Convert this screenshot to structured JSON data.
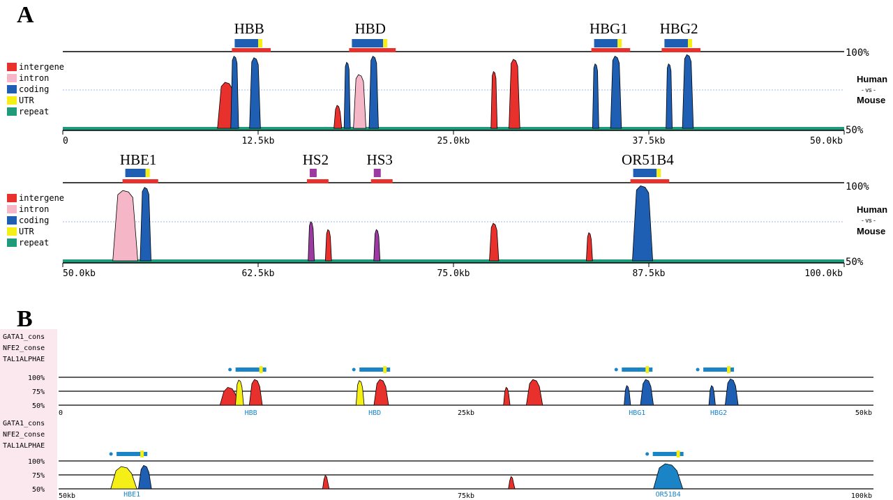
{
  "colors": {
    "intergene": "#e8302c",
    "intron": "#f5b6c8",
    "coding": "#1f5fb3",
    "utr": "#f5ef18",
    "repeat": "#1f9a7a",
    "hs": "#9b3aa0",
    "gene_blue": "#1a84c7",
    "b_pink": "#fbe8ee"
  },
  "panel_a": {
    "letter": "A",
    "legend": [
      "intergene",
      "intron",
      "coding",
      "UTR",
      "repeat"
    ],
    "human": "Human",
    "vs": "- vs -",
    "mouse": "Mouse",
    "pct_top": "100%",
    "pct_bottom": "50%"
  },
  "panel_b": {
    "letter": "B",
    "tracks": [
      "GATA1_cons",
      "NFE2_conse",
      "TAL1ALPHAE"
    ],
    "pct_labels": [
      "100%",
      "75%",
      "50%"
    ]
  },
  "chart_data": [
    {
      "type": "area",
      "panel": "A-top",
      "x_range_kb": [
        0,
        50
      ],
      "y_range_pct": [
        50,
        100
      ],
      "ticks": [
        "0",
        "12.5kb",
        "25.0kb",
        "37.5kb",
        "50.0kb"
      ],
      "genes": [
        {
          "name": "HBB",
          "start_kb": 11,
          "end_kb": 12.5
        },
        {
          "name": "HBD",
          "start_kb": 18.5,
          "end_kb": 20.5
        },
        {
          "name": "HBG1",
          "start_kb": 34,
          "end_kb": 35.5
        },
        {
          "name": "HBG2",
          "start_kb": 38.5,
          "end_kb": 40
        }
      ],
      "peaks": [
        {
          "x_kb": 10.5,
          "width_kb": 1.2,
          "height_pct": 80,
          "category": "intergene"
        },
        {
          "x_kb": 11.0,
          "width_kb": 0.5,
          "height_pct": 97,
          "category": "coding"
        },
        {
          "x_kb": 12.3,
          "width_kb": 0.7,
          "height_pct": 96,
          "category": "coding"
        },
        {
          "x_kb": 17.6,
          "width_kb": 0.5,
          "height_pct": 65,
          "category": "intergene"
        },
        {
          "x_kb": 18.2,
          "width_kb": 0.4,
          "height_pct": 93,
          "category": "coding"
        },
        {
          "x_kb": 19.0,
          "width_kb": 0.8,
          "height_pct": 85,
          "category": "intron"
        },
        {
          "x_kb": 19.9,
          "width_kb": 0.6,
          "height_pct": 97,
          "category": "coding"
        },
        {
          "x_kb": 27.6,
          "width_kb": 0.4,
          "height_pct": 87,
          "category": "intergene"
        },
        {
          "x_kb": 28.9,
          "width_kb": 0.7,
          "height_pct": 95,
          "category": "intergene"
        },
        {
          "x_kb": 34.1,
          "width_kb": 0.4,
          "height_pct": 92,
          "category": "coding"
        },
        {
          "x_kb": 35.4,
          "width_kb": 0.7,
          "height_pct": 97,
          "category": "coding"
        },
        {
          "x_kb": 38.8,
          "width_kb": 0.4,
          "height_pct": 92,
          "category": "coding"
        },
        {
          "x_kb": 40.0,
          "width_kb": 0.7,
          "height_pct": 98,
          "category": "coding"
        }
      ]
    },
    {
      "type": "area",
      "panel": "A-bottom",
      "x_range_kb": [
        50,
        100
      ],
      "y_range_pct": [
        50,
        100
      ],
      "ticks": [
        "50.0kb",
        "62.5kb",
        "75.0kb",
        "87.5kb",
        "100.0kb"
      ],
      "genes": [
        {
          "name": "HBE1",
          "start_kb": 54,
          "end_kb": 55.3
        },
        {
          "name": "HS2",
          "start_kb": 65.8,
          "end_kb": 66.2
        },
        {
          "name": "HS3",
          "start_kb": 69.9,
          "end_kb": 70.3
        },
        {
          "name": "OR51B4",
          "start_kb": 86.5,
          "end_kb": 88
        }
      ],
      "peaks": [
        {
          "x_kb": 54.0,
          "width_kb": 1.6,
          "height_pct": 95,
          "category": "intron"
        },
        {
          "x_kb": 55.3,
          "width_kb": 0.7,
          "height_pct": 97,
          "category": "coding"
        },
        {
          "x_kb": 65.9,
          "width_kb": 0.4,
          "height_pct": 75,
          "category": "hs"
        },
        {
          "x_kb": 67.0,
          "width_kb": 0.4,
          "height_pct": 70,
          "category": "intergene"
        },
        {
          "x_kb": 70.1,
          "width_kb": 0.4,
          "height_pct": 70,
          "category": "hs"
        },
        {
          "x_kb": 77.6,
          "width_kb": 0.6,
          "height_pct": 74,
          "category": "intergene"
        },
        {
          "x_kb": 83.7,
          "width_kb": 0.4,
          "height_pct": 68,
          "category": "intergene"
        },
        {
          "x_kb": 87.1,
          "width_kb": 1.3,
          "height_pct": 98,
          "category": "coding"
        }
      ]
    },
    {
      "type": "area",
      "panel": "B-top",
      "x_range_kb": [
        0,
        50
      ],
      "y_range_pct": [
        50,
        100
      ],
      "ticks": [
        "0",
        "25kb",
        "50kb"
      ],
      "genes": [
        {
          "name": "HBB",
          "position_kb": 11.8
        },
        {
          "name": "HBD",
          "position_kb": 19.4
        },
        {
          "name": "HBG1",
          "position_kb": 35.5
        },
        {
          "name": "HBG2",
          "position_kb": 40.5
        }
      ],
      "peaks": [
        {
          "x_kb": 10.5,
          "width_kb": 1.2,
          "height_pct": 82,
          "category": "intergene"
        },
        {
          "x_kb": 11.1,
          "width_kb": 0.5,
          "height_pct": 95,
          "category": "utr"
        },
        {
          "x_kb": 12.1,
          "width_kb": 0.8,
          "height_pct": 96,
          "category": "intergene"
        },
        {
          "x_kb": 18.5,
          "width_kb": 0.5,
          "height_pct": 94,
          "category": "utr"
        },
        {
          "x_kb": 19.8,
          "width_kb": 0.9,
          "height_pct": 96,
          "category": "intergene"
        },
        {
          "x_kb": 27.5,
          "width_kb": 0.4,
          "height_pct": 82,
          "category": "intergene"
        },
        {
          "x_kb": 29.2,
          "width_kb": 1.0,
          "height_pct": 96,
          "category": "intergene"
        },
        {
          "x_kb": 34.9,
          "width_kb": 0.4,
          "height_pct": 85,
          "category": "coding"
        },
        {
          "x_kb": 36.1,
          "width_kb": 0.8,
          "height_pct": 96,
          "category": "coding"
        },
        {
          "x_kb": 40.1,
          "width_kb": 0.4,
          "height_pct": 85,
          "category": "coding"
        },
        {
          "x_kb": 41.3,
          "width_kb": 0.8,
          "height_pct": 97,
          "category": "coding"
        }
      ]
    },
    {
      "type": "area",
      "panel": "B-bottom",
      "x_range_kb": [
        50,
        100
      ],
      "y_range_pct": [
        50,
        100
      ],
      "ticks": [
        "50kb",
        "75kb",
        "100kb"
      ],
      "genes": [
        {
          "name": "HBE1",
          "position_kb": 54.5
        },
        {
          "name": "OR51B4",
          "position_kb": 87.4
        }
      ],
      "peaks": [
        {
          "x_kb": 54.0,
          "width_kb": 1.6,
          "height_pct": 90,
          "category": "utr"
        },
        {
          "x_kb": 55.3,
          "width_kb": 0.8,
          "height_pct": 92,
          "category": "coding"
        },
        {
          "x_kb": 66.4,
          "width_kb": 0.4,
          "height_pct": 74,
          "category": "intergene"
        },
        {
          "x_kb": 77.8,
          "width_kb": 0.4,
          "height_pct": 72,
          "category": "intergene"
        },
        {
          "x_kb": 87.4,
          "width_kb": 1.8,
          "height_pct": 95,
          "category": "gene_blue"
        }
      ]
    }
  ]
}
